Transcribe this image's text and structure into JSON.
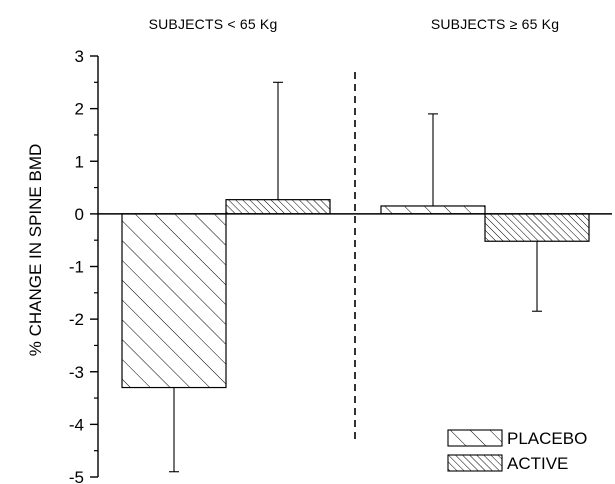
{
  "chart_data": {
    "type": "bar",
    "groups": [
      "SUBJECTS < 65 Kg",
      "SUBJECTS ≥ 65 Kg"
    ],
    "series": [
      {
        "name": "PLACEBO",
        "values": [
          -3.3,
          0.15
        ],
        "error_up": [
          0,
          1.75
        ],
        "error_down": [
          1.6,
          0
        ]
      },
      {
        "name": "ACTIVE",
        "values": [
          0.27,
          -0.52
        ],
        "error_up": [
          2.23,
          0
        ],
        "error_down": [
          0,
          1.33
        ]
      }
    ],
    "ylabel": "% CHANGE IN SPINE BMD",
    "ylim": [
      -5,
      3
    ],
    "yticks": [
      3,
      2,
      1,
      0,
      -1,
      -2,
      -3,
      -4,
      -5
    ],
    "legend_position": "bottom-right",
    "group_divider": "dashed"
  },
  "colors": {
    "axis": "#000000",
    "hatch": "#000000",
    "background": "#ffffff"
  }
}
